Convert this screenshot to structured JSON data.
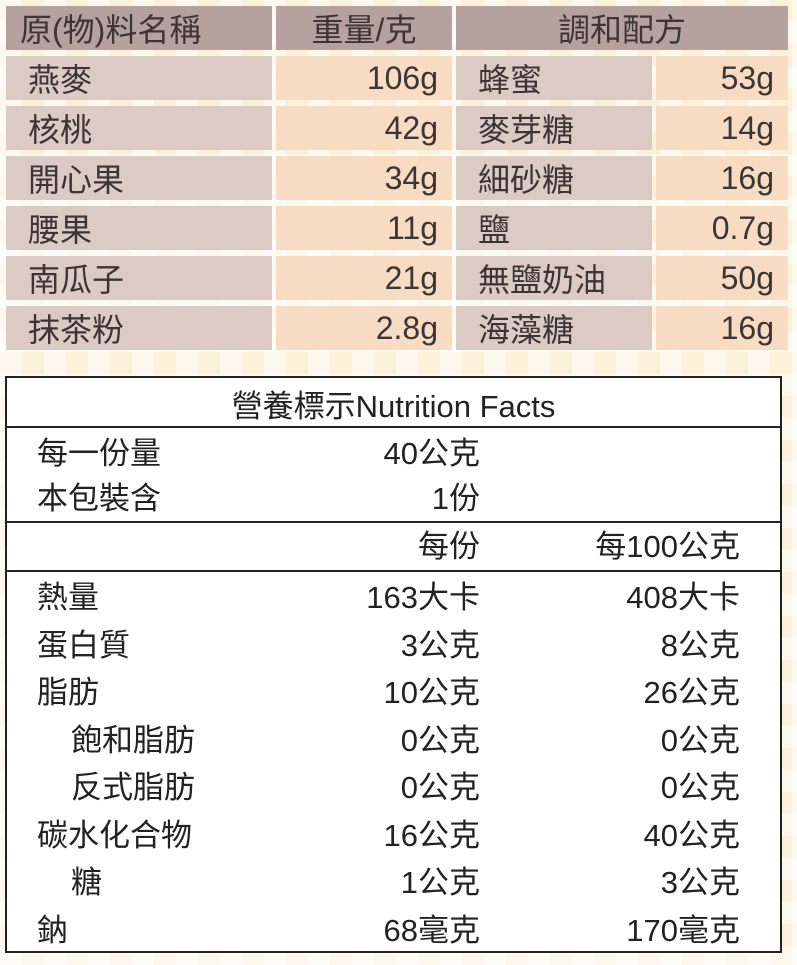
{
  "recipe": {
    "headers": {
      "ingredient": "原(物)料名稱",
      "weight": "重量/克",
      "blend": "調和配方"
    },
    "rows": [
      {
        "name": "燕麥",
        "amount": "106g",
        "blend_name": "蜂蜜",
        "blend_amount": "53g"
      },
      {
        "name": "核桃",
        "amount": "42g",
        "blend_name": "麥芽糖",
        "blend_amount": "14g"
      },
      {
        "name": "開心果",
        "amount": "34g",
        "blend_name": "細砂糖",
        "blend_amount": "16g"
      },
      {
        "name": "腰果",
        "amount": "11g",
        "blend_name": "鹽",
        "blend_amount": "0.7g"
      },
      {
        "name": "南瓜子",
        "amount": "21g",
        "blend_name": "無鹽奶油",
        "blend_amount": "50g"
      },
      {
        "name": "抹茶粉",
        "amount": "2.8g",
        "blend_name": "海藻糖",
        "blend_amount": "16g"
      }
    ]
  },
  "nutrition": {
    "title": "營養標示Nutrition Facts",
    "serving_size_label": "每一份量",
    "serving_size_value": "40公克",
    "servings_label": "本包裝含",
    "servings_value": "1份",
    "col_per_serving": "每份",
    "col_per_100g": "每100公克",
    "items": [
      {
        "label": "熱量",
        "indent": false,
        "per_serving": "163大卡",
        "per_100g": "408大卡"
      },
      {
        "label": "蛋白質",
        "indent": false,
        "per_serving": "3公克",
        "per_100g": "8公克"
      },
      {
        "label": "脂肪",
        "indent": false,
        "per_serving": "10公克",
        "per_100g": "26公克"
      },
      {
        "label": "飽和脂肪",
        "indent": true,
        "per_serving": "0公克",
        "per_100g": "0公克"
      },
      {
        "label": "反式脂肪",
        "indent": true,
        "per_serving": "0公克",
        "per_100g": "0公克"
      },
      {
        "label": "碳水化合物",
        "indent": false,
        "per_serving": "16公克",
        "per_100g": "40公克"
      },
      {
        "label": "糖",
        "indent": true,
        "per_serving": "1公克",
        "per_100g": "3公克"
      },
      {
        "label": "鈉",
        "indent": false,
        "per_serving": "68毫克",
        "per_100g": "170毫克"
      }
    ]
  }
}
